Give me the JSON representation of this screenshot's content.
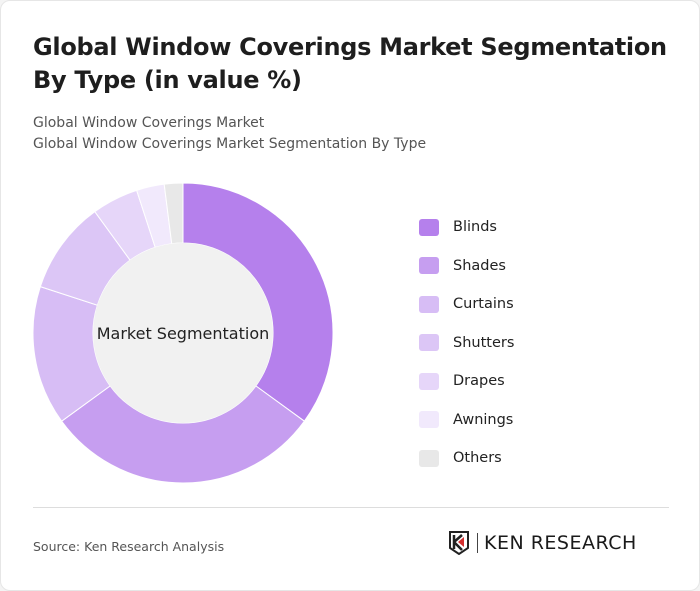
{
  "title": "Global Window Coverings Market Segmentation By Type (in value %)",
  "subtitle1": "Global Window Coverings Market",
  "subtitle2": "Global Window Coverings Market Segmentation By Type",
  "source": "Source: Ken Research Analysis",
  "logo_text": "KEN RESEARCH",
  "chart_data": {
    "type": "pie",
    "donut": true,
    "center_label": "Market Segmentation",
    "legend_position": "right",
    "categories": [
      "Blinds",
      "Shades",
      "Curtains",
      "Shutters",
      "Drapes",
      "Awnings",
      "Others"
    ],
    "values": [
      35,
      30,
      15,
      10,
      5,
      3,
      2
    ],
    "colors": [
      "#b580ec",
      "#c69ef0",
      "#d7bdf5",
      "#dcc6f6",
      "#e6d6f9",
      "#f1e9fc",
      "#e8e8e8"
    ]
  }
}
